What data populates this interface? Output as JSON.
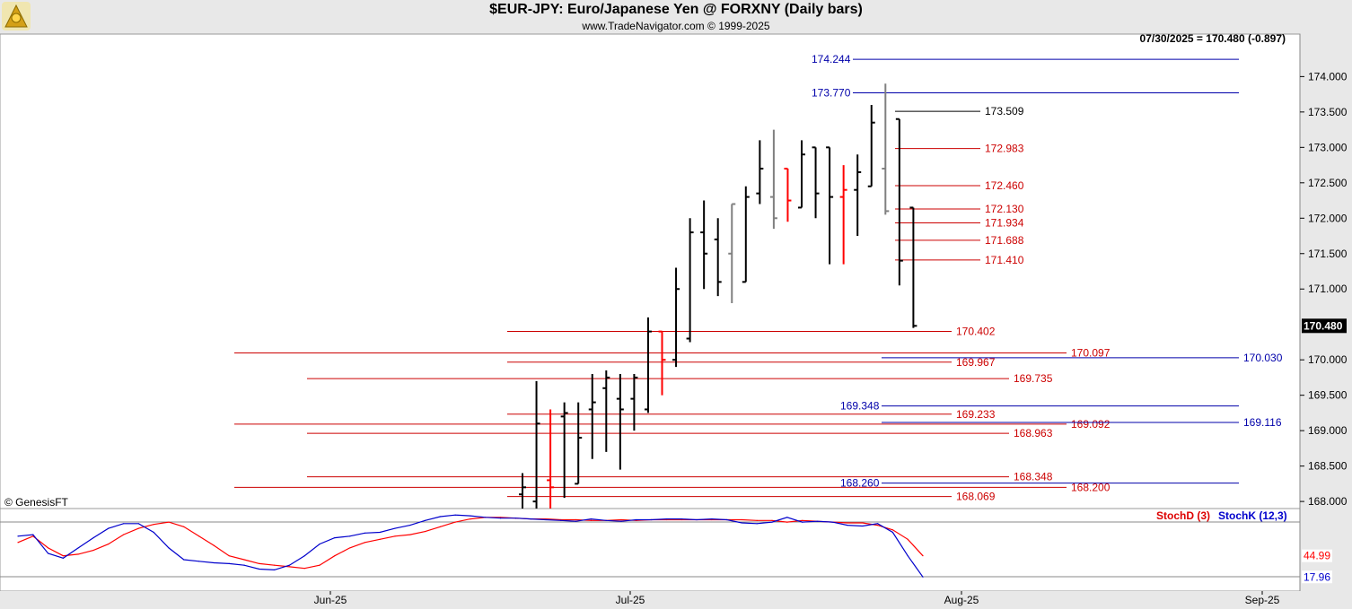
{
  "header": {
    "title": "$EUR-JPY:  Euro/Japanese Yen @ FORXNY  (Daily bars)",
    "copyright": "www.TradeNavigator.com © 1999-2025"
  },
  "status": {
    "last_quote": "07/30/2025 = 170.480 (-0.897)",
    "watermark": "© GenesisFT"
  },
  "colors": {
    "background": "#ffffff",
    "chrome": "#e8e8e8",
    "up_bar": "#000000",
    "down_bar": "#808080",
    "red_bar": "#ff0000",
    "red_line": "#cc0000",
    "blue_line": "#0000aa",
    "stoch_d": "#ff0000",
    "stoch_k": "#0000cc"
  },
  "chart_data": [
    {
      "type": "ohlc",
      "title": "$EUR-JPY:  Euro/Japanese Yen @ FORXNY  (Daily bars)",
      "ylim": [
        167.9,
        174.6
      ],
      "y_ticks": [
        "174.000",
        "173.500",
        "173.000",
        "172.500",
        "172.000",
        "171.500",
        "171.000",
        "170.000",
        "169.500",
        "169.000",
        "168.500",
        "168.000"
      ],
      "y_tick_values": [
        174.0,
        173.5,
        173.0,
        172.5,
        172.0,
        171.5,
        171.0,
        170.0,
        169.5,
        169.0,
        168.5,
        168.0
      ],
      "x_ticks": [
        "Jun-25",
        "Jul-25",
        "Aug-25",
        "Sep-25"
      ],
      "last_price_label": "170.480",
      "last_price": 170.48,
      "bars": [
        {
          "o": 168.1,
          "h": 168.4,
          "l": 167.9,
          "c": 168.2,
          "col": "black"
        },
        {
          "o": 168.0,
          "h": 169.7,
          "l": 167.9,
          "c": 169.1,
          "col": "black"
        },
        {
          "o": 168.3,
          "h": 169.3,
          "l": 167.9,
          "c": 168.2,
          "col": "red"
        },
        {
          "o": 169.2,
          "h": 169.4,
          "l": 168.05,
          "c": 169.25,
          "col": "black"
        },
        {
          "o": 168.25,
          "h": 169.4,
          "l": 168.25,
          "c": 168.9,
          "col": "black"
        },
        {
          "o": 169.3,
          "h": 169.8,
          "l": 168.6,
          "c": 169.4,
          "col": "black"
        },
        {
          "o": 169.6,
          "h": 169.85,
          "l": 168.7,
          "c": 169.75,
          "col": "black"
        },
        {
          "o": 169.45,
          "h": 169.8,
          "l": 168.45,
          "c": 169.3,
          "col": "black"
        },
        {
          "o": 169.45,
          "h": 169.8,
          "l": 169.0,
          "c": 169.75,
          "col": "black"
        },
        {
          "o": 169.3,
          "h": 170.6,
          "l": 169.25,
          "c": 170.4,
          "col": "black"
        },
        {
          "o": 170.4,
          "h": 170.4,
          "l": 169.5,
          "c": 170.0,
          "col": "red"
        },
        {
          "o": 170.0,
          "h": 171.3,
          "l": 169.9,
          "c": 171.0,
          "col": "black"
        },
        {
          "o": 170.3,
          "h": 172.0,
          "l": 170.25,
          "c": 171.8,
          "col": "black"
        },
        {
          "o": 171.8,
          "h": 172.25,
          "l": 171.0,
          "c": 171.5,
          "col": "black"
        },
        {
          "o": 171.7,
          "h": 172.0,
          "l": 170.9,
          "c": 171.1,
          "col": "black"
        },
        {
          "o": 171.5,
          "h": 172.2,
          "l": 170.8,
          "c": 172.2,
          "col": "gray"
        },
        {
          "o": 171.1,
          "h": 172.45,
          "l": 171.1,
          "c": 172.3,
          "col": "black"
        },
        {
          "o": 172.35,
          "h": 173.1,
          "l": 172.2,
          "c": 172.7,
          "col": "black"
        },
        {
          "o": 172.3,
          "h": 173.25,
          "l": 171.85,
          "c": 172.0,
          "col": "gray"
        },
        {
          "o": 172.7,
          "h": 172.7,
          "l": 171.95,
          "c": 172.25,
          "col": "red"
        },
        {
          "o": 172.15,
          "h": 173.1,
          "l": 172.15,
          "c": 172.9,
          "col": "black"
        },
        {
          "o": 173.0,
          "h": 173.0,
          "l": 172.0,
          "c": 172.35,
          "col": "black"
        },
        {
          "o": 173.0,
          "h": 173.0,
          "l": 171.35,
          "c": 172.3,
          "col": "black"
        },
        {
          "o": 172.3,
          "h": 172.75,
          "l": 171.35,
          "c": 172.4,
          "col": "red"
        },
        {
          "o": 172.4,
          "h": 172.9,
          "l": 171.75,
          "c": 172.65,
          "col": "black"
        },
        {
          "o": 172.45,
          "h": 173.6,
          "l": 172.45,
          "c": 173.35,
          "col": "black"
        },
        {
          "o": 172.7,
          "h": 173.9,
          "l": 172.05,
          "c": 172.1,
          "col": "gray"
        },
        {
          "o": 173.4,
          "h": 173.4,
          "l": 171.05,
          "c": 171.4,
          "col": "black"
        },
        {
          "o": 172.15,
          "h": 172.15,
          "l": 170.45,
          "c": 170.48,
          "col": "black"
        }
      ],
      "levels_red": [
        {
          "value": 173.509,
          "label": "173.509",
          "style": "black"
        },
        {
          "value": 172.983,
          "label": "172.983"
        },
        {
          "value": 172.46,
          "label": "172.460"
        },
        {
          "value": 172.13,
          "label": "172.130"
        },
        {
          "value": 171.934,
          "label": "171.934"
        },
        {
          "value": 171.688,
          "label": "171.688"
        },
        {
          "value": 171.41,
          "label": "171.410"
        },
        {
          "value": 170.402,
          "label": "170.402"
        },
        {
          "value": 170.097,
          "label": "170.097"
        },
        {
          "value": 169.967,
          "label": "169.967"
        },
        {
          "value": 169.735,
          "label": "169.735"
        },
        {
          "value": 169.233,
          "label": "169.233"
        },
        {
          "value": 169.092,
          "label": "169.092"
        },
        {
          "value": 168.963,
          "label": "168.963"
        },
        {
          "value": 168.348,
          "label": "168.348"
        },
        {
          "value": 168.2,
          "label": "168.200"
        },
        {
          "value": 168.069,
          "label": "168.069"
        }
      ],
      "levels_blue": [
        {
          "value": 174.244,
          "label": "174.244"
        },
        {
          "value": 173.77,
          "label": "173.770"
        },
        {
          "value": 170.03,
          "label": "170.030"
        },
        {
          "value": 169.348,
          "label": "169.348"
        },
        {
          "value": 169.116,
          "label": "169.116"
        },
        {
          "value": 168.26,
          "label": "168.260"
        }
      ]
    },
    {
      "type": "line",
      "legend": [
        "StochD (3)",
        "StochK (12,3)"
      ],
      "ylim": [
        0,
        100
      ],
      "series": [
        {
          "name": "StochD (3)",
          "last_label": "44.99",
          "values": [
            62,
            70,
            55,
            45,
            47,
            52,
            60,
            72,
            80,
            85,
            88,
            82,
            70,
            58,
            45,
            40,
            35,
            33,
            31,
            29,
            33,
            45,
            55,
            62,
            66,
            70,
            72,
            76,
            82,
            88,
            92,
            94,
            94,
            93,
            92,
            92,
            91,
            91,
            90,
            90,
            91,
            90,
            91,
            91,
            91,
            91,
            91,
            91,
            91,
            90,
            90,
            88,
            90,
            89,
            88,
            87,
            87,
            84,
            78,
            66,
            45
          ]
        },
        {
          "name": "StochK (12,3)",
          "last_label": "17.96",
          "values": [
            70,
            72,
            48,
            42,
            55,
            68,
            80,
            86,
            86,
            75,
            55,
            40,
            38,
            36,
            35,
            33,
            28,
            27,
            33,
            45,
            60,
            68,
            70,
            74,
            75,
            80,
            84,
            90,
            95,
            97,
            96,
            94,
            93,
            93,
            92,
            91,
            90,
            89,
            92,
            90,
            89,
            91,
            91,
            92,
            92,
            91,
            92,
            91,
            87,
            86,
            88,
            94,
            88,
            89,
            88,
            84,
            83,
            86,
            75,
            45,
            18
          ]
        }
      ]
    }
  ]
}
